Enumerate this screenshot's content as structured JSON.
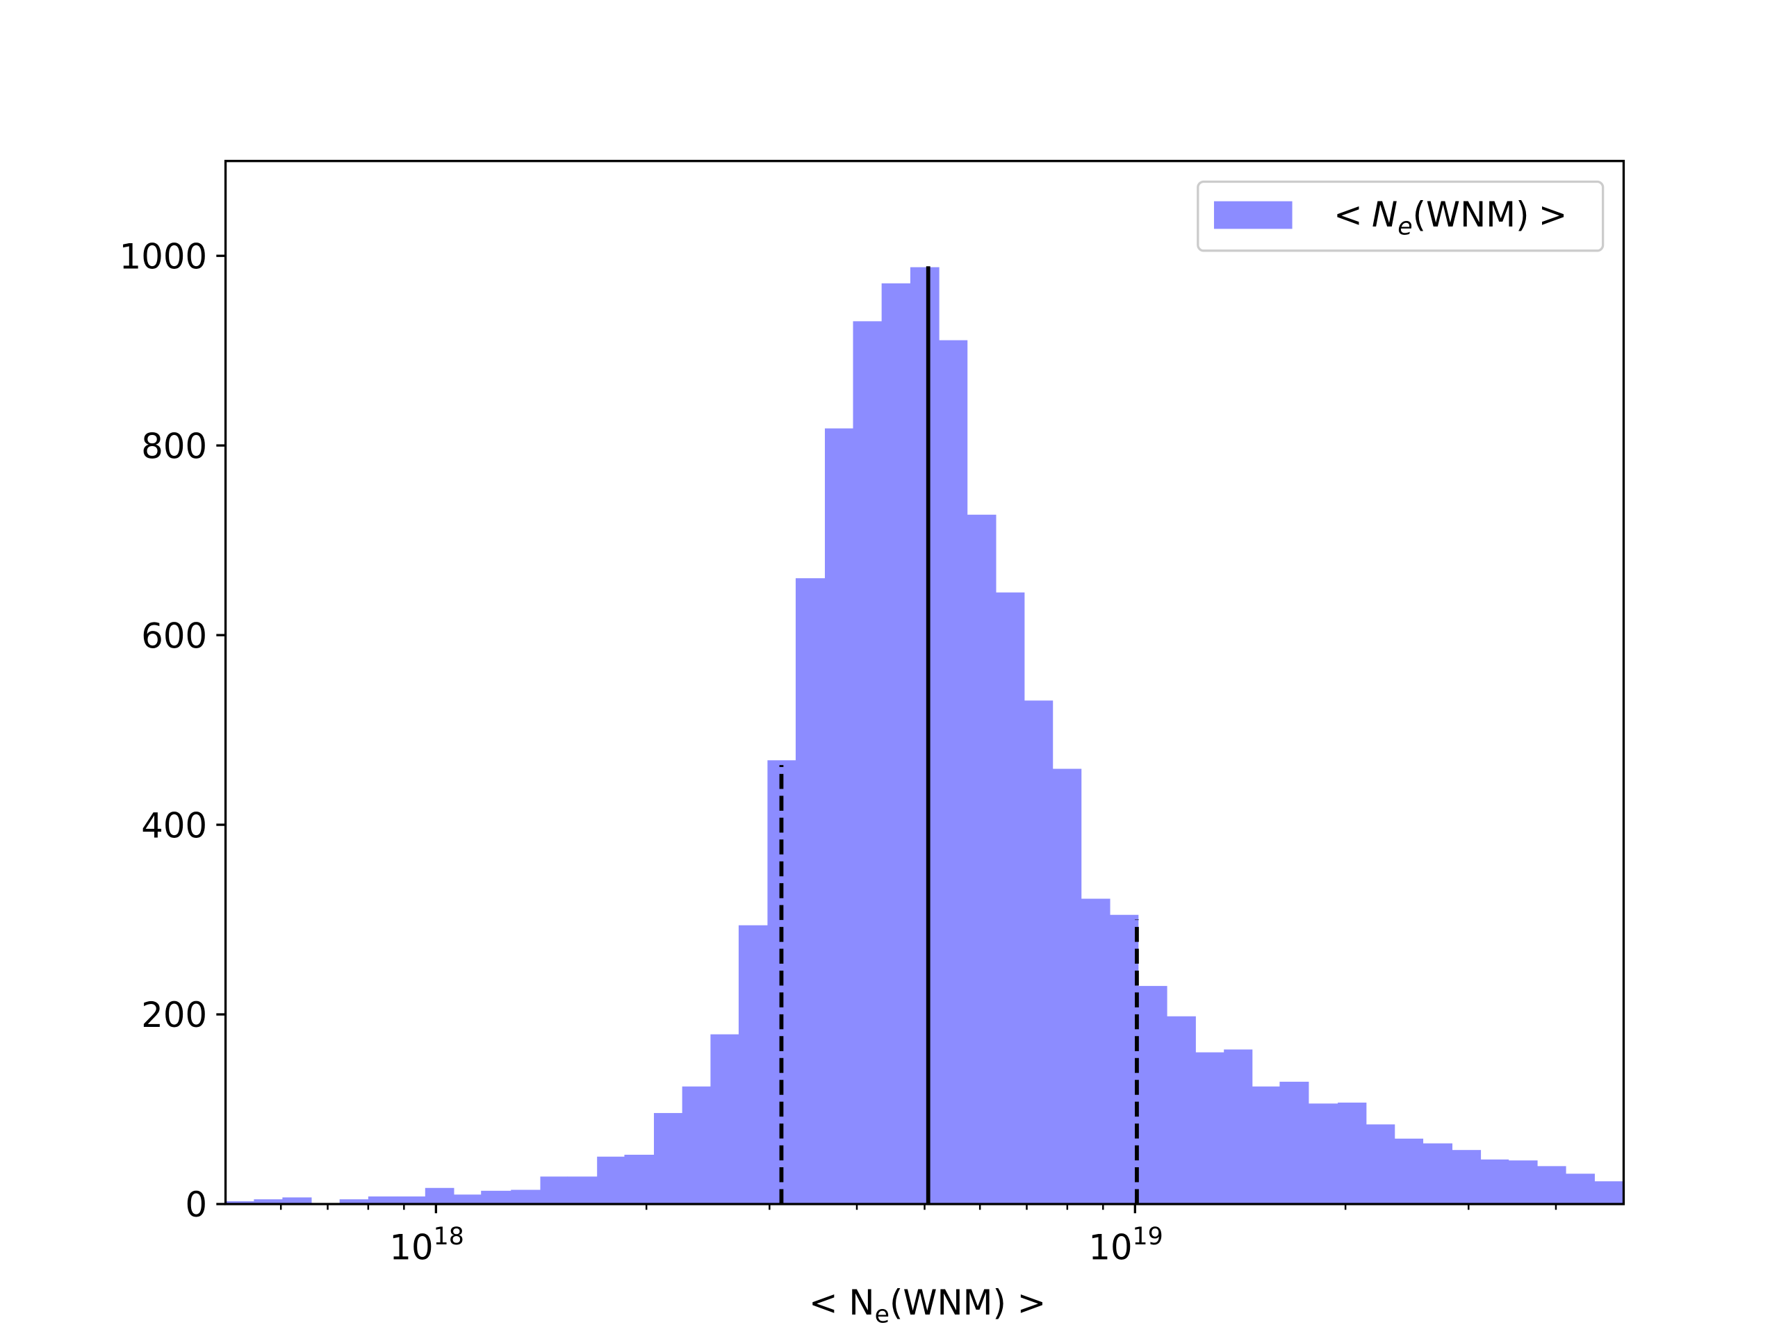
{
  "chart_data": {
    "type": "histogram",
    "xlabel": [
      "< N",
      "e",
      "(WNM) >"
    ],
    "log_x": true,
    "xlim": [
      5e+17,
      5e+19
    ],
    "xticks": [
      {
        "value": 1e+18,
        "label": [
          "10",
          "18"
        ]
      },
      {
        "value": 1e+19,
        "label": [
          "10",
          "19"
        ]
      }
    ],
    "xminor_ticks": [
      6e+17,
      7e+17,
      8e+17,
      9e+17,
      2e+18,
      3e+18,
      4e+18,
      5e+18,
      6e+18,
      7e+18,
      8e+18,
      9e+18,
      2e+19,
      3e+19,
      4e+19
    ],
    "ylim": [
      0,
      1100
    ],
    "yticks": [
      0,
      200,
      400,
      600,
      800,
      1000
    ],
    "legend": "upper right",
    "bins": [
      5e+17,
      5.49e+17,
      6.03e+17,
      6.63e+17,
      7.28e+17,
      8e+17,
      8.79e+17,
      9.65e+17,
      1.06e+18,
      1.16e+18,
      1.28e+18,
      1.41e+18,
      1.54e+18,
      1.7e+18,
      1.86e+18,
      2.05e+18,
      2.25e+18,
      2.47e+18,
      2.71e+18,
      2.98e+18,
      3.27e+18,
      3.6e+18,
      3.95e+18,
      4.34e+18,
      4.77e+18,
      5.24e+18,
      5.75e+18,
      6.32e+18,
      6.94e+18,
      7.62e+18,
      8.37e+18,
      9.2e+18,
      1.01e+19,
      1.11e+19,
      1.22e+19,
      1.34e+19,
      1.47e+19,
      1.61e+19,
      1.77e+19,
      1.95e+19,
      2.14e+19,
      2.35e+19,
      2.58e+19,
      2.84e+19,
      3.12e+19,
      3.42e+19,
      3.76e+19,
      4.13e+19,
      4.54e+19,
      5e+19
    ],
    "series": [
      {
        "name": [
          "<",
          "N",
          "e",
          "(WNM)",
          ">"
        ],
        "color": "#8c8cff",
        "values": [
          3,
          5,
          7,
          1,
          5,
          8,
          8,
          17,
          10,
          14,
          15,
          29,
          29,
          50,
          52,
          96,
          124,
          179,
          294,
          468,
          660,
          818,
          931,
          971,
          988,
          911,
          727,
          645,
          531,
          459,
          322,
          305,
          230,
          198,
          160,
          163,
          124,
          129,
          106,
          107,
          84,
          69,
          64,
          57,
          47,
          46,
          40,
          32,
          24
        ]
      }
    ],
    "vlines": [
      {
        "x": 3.12e+18,
        "y": 463,
        "style": "dashed",
        "color": "#000000"
      },
      {
        "x": 5.06e+18,
        "y": 989,
        "style": "solid",
        "color": "#000000"
      },
      {
        "x": 1.006e+19,
        "y": 300,
        "style": "dashed",
        "color": "#000000"
      }
    ]
  }
}
